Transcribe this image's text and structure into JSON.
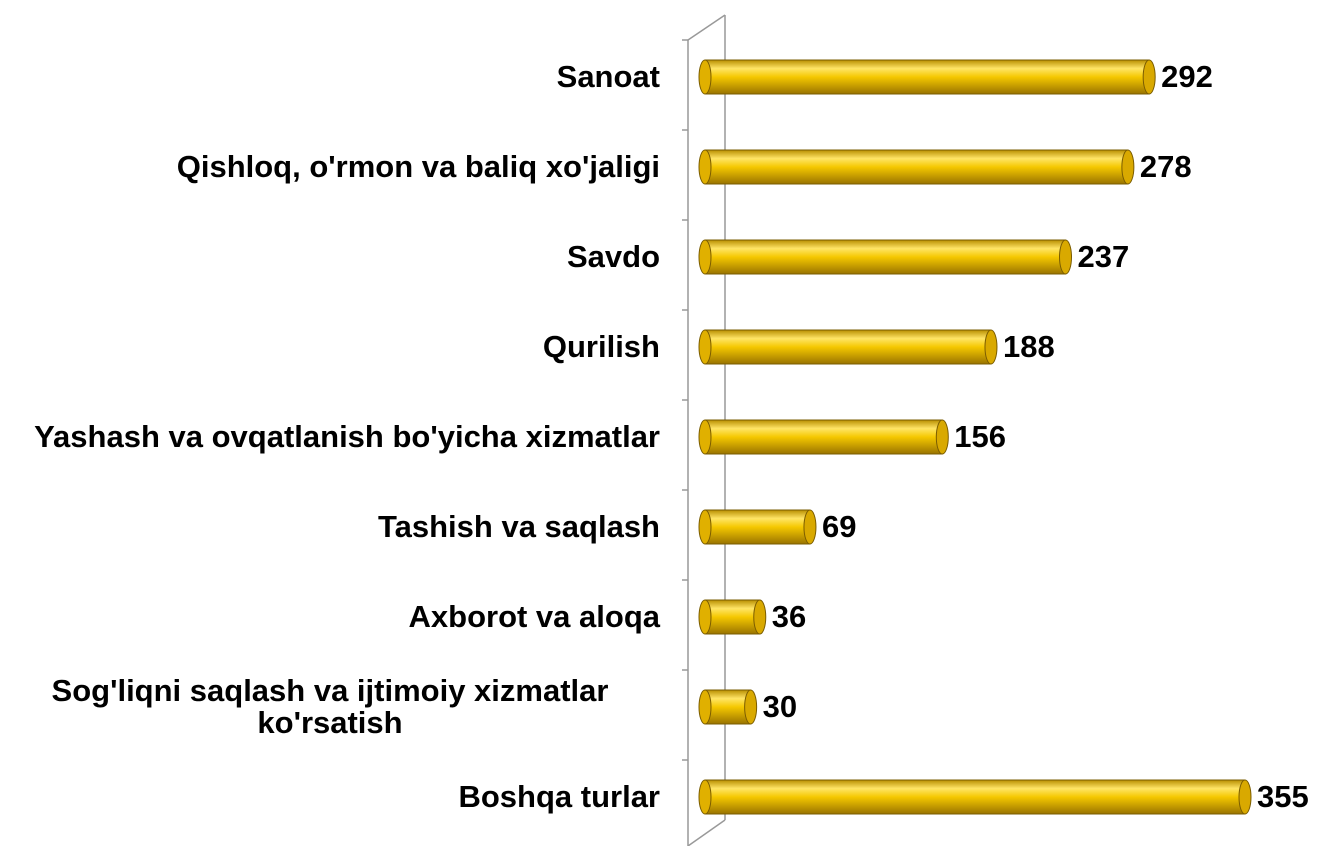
{
  "chart_data": {
    "type": "bar",
    "orientation": "horizontal",
    "color": "#f2c200",
    "categories": [
      "Sanoat",
      "Qishloq, o'rmon va baliq xo'jaligi",
      "Savdo",
      "Qurilish",
      "Yashash va ovqatlanish bo'yicha xizmatlar",
      "Tashish va saqlash",
      "Axborot va aloqa",
      "Sog'liqni saqlash va ijtimoiy xizmatlar ko'rsatish",
      "Boshqa turlar"
    ],
    "values": [
      292,
      278,
      237,
      188,
      156,
      69,
      36,
      30,
      355
    ]
  }
}
